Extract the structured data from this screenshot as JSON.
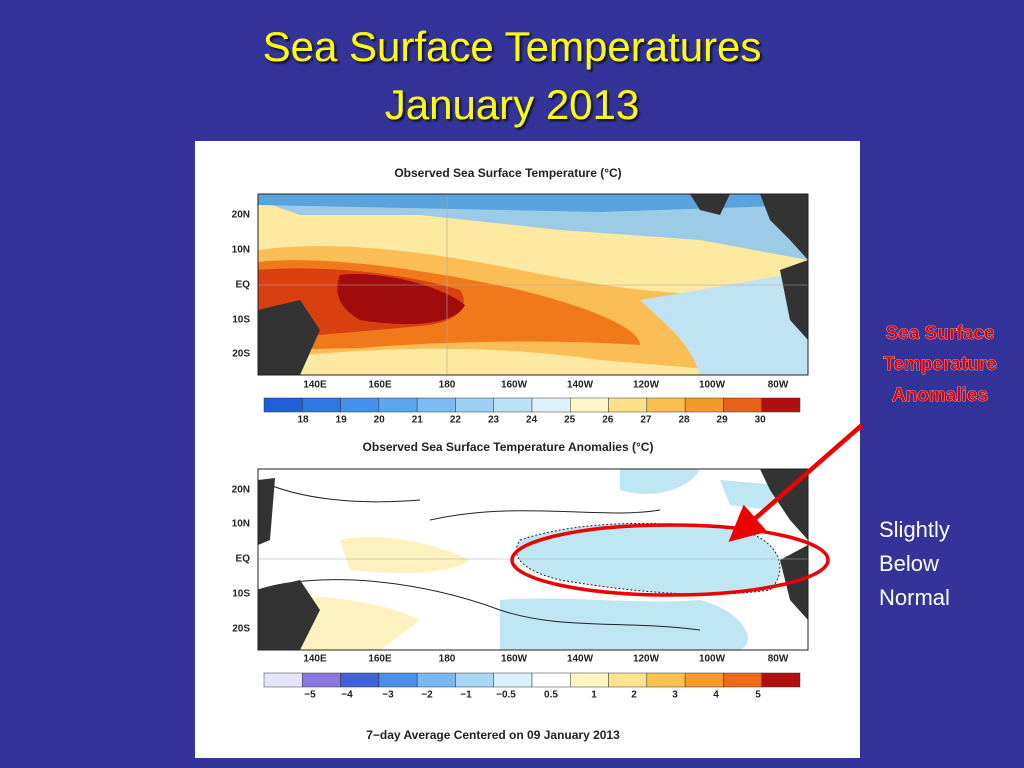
{
  "slide": {
    "title_line1": "Sea Surface Temperatures",
    "title_line2": "January 2013"
  },
  "figure": {
    "maps": [
      {
        "title": "Observed Sea Surface Temperature (°C)",
        "lat_labels": [
          "20N",
          "10N",
          "EQ",
          "10S",
          "20S"
        ],
        "lon_labels": [
          "140E",
          "160E",
          "180",
          "160W",
          "140W",
          "120W",
          "100W",
          "80W"
        ],
        "colorbar_labels": [
          "18",
          "19",
          "20",
          "21",
          "22",
          "23",
          "24",
          "25",
          "26",
          "27",
          "28",
          "29",
          "30"
        ]
      },
      {
        "title": "Observed Sea Surface Temperature Anomalies (°C)",
        "lat_labels": [
          "20N",
          "10N",
          "EQ",
          "10S",
          "20S"
        ],
        "lon_labels": [
          "140E",
          "160E",
          "180",
          "160W",
          "140W",
          "120W",
          "100W",
          "80W"
        ],
        "colorbar_labels": [
          "−5",
          "−4",
          "−3",
          "−2",
          "−1",
          "−0.5",
          "0.5",
          "1",
          "2",
          "3",
          "4",
          "5"
        ]
      }
    ],
    "footer": "7−day Average Centered on 09 January 2013"
  },
  "annotations": {
    "anomaly_label": [
      "Sea Surface",
      "Temperature",
      "Anomalies"
    ],
    "note": [
      "Slightly",
      "Below",
      "Normal"
    ]
  }
}
